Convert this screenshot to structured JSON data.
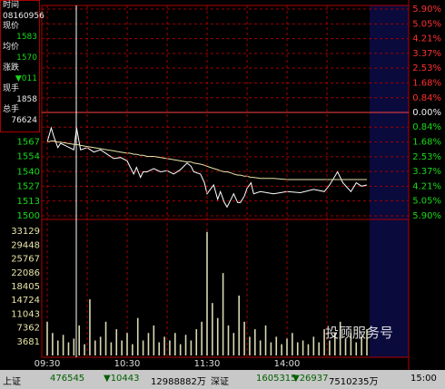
{
  "chart_data": [
    {
      "type": "line",
      "xlim": [
        0,
        240
      ],
      "x": [
        0,
        3,
        5,
        8,
        10,
        15,
        20,
        22,
        25,
        30,
        35,
        40,
        45,
        50,
        55,
        60,
        62,
        65,
        67,
        70,
        72,
        75,
        80,
        85,
        90,
        95,
        100,
        105,
        108,
        110,
        115,
        118,
        120,
        125,
        128,
        130,
        133,
        135,
        138,
        140,
        143,
        145,
        148,
        150,
        153,
        155,
        160,
        170,
        180,
        190,
        200,
        208,
        212,
        218,
        222,
        228,
        232,
        236,
        240
      ],
      "series": [
        {
          "color": "#ffffff",
          "values": [
            1567,
            1580,
            1572,
            1562,
            1566,
            1563,
            1560,
            1580,
            1560,
            1562,
            1558,
            1560,
            1556,
            1552,
            1553,
            1550,
            1545,
            1538,
            1544,
            1535,
            1540,
            1540,
            1543,
            1540,
            1541,
            1538,
            1542,
            1548,
            1545,
            1540,
            1538,
            1530,
            1520,
            1528,
            1515,
            1522,
            1512,
            1508,
            1515,
            1520,
            1512,
            1512,
            1518,
            1525,
            1530,
            1520,
            1522,
            1520,
            1522,
            1521,
            1524,
            1522,
            1528,
            1540,
            1530,
            1522,
            1530,
            1527,
            1528
          ]
        },
        {
          "color": "#e8e4a8",
          "values": [
            1567,
            1568,
            1568,
            1567,
            1567,
            1566,
            1565,
            1565,
            1564,
            1563,
            1562,
            1561,
            1560,
            1559,
            1558,
            1557,
            1557,
            1556,
            1556,
            1555,
            1555,
            1554,
            1554,
            1553,
            1552,
            1551,
            1550,
            1549,
            1549,
            1548,
            1547,
            1546,
            1545,
            1543,
            1542,
            1541,
            1540,
            1540,
            1539,
            1538,
            1537,
            1537,
            1536,
            1536,
            1535,
            1535,
            1534,
            1534,
            1533,
            1533,
            1533,
            1533,
            1533,
            1533,
            1533,
            1533,
            1533,
            1533,
            1533
          ]
        }
      ],
      "ylim": [
        1500,
        1688
      ],
      "yticks": [
        1500,
        1513,
        1527,
        1540,
        1554,
        1567
      ],
      "ytick_color": "#19d919",
      "y2lim": [
        -5.9,
        5.9
      ],
      "y2ticks": [
        {
          "value": 5.9,
          "label": "5.90%"
        },
        {
          "value": 5.05,
          "label": "5.05%"
        },
        {
          "value": 4.21,
          "label": "4.21%"
        },
        {
          "value": 3.37,
          "label": "3.37%"
        },
        {
          "value": 2.53,
          "label": "2.53%"
        },
        {
          "value": 1.68,
          "label": "1.68%"
        },
        {
          "value": 0.84,
          "label": "0.84%"
        },
        {
          "value": 0,
          "label": "0.00%"
        },
        {
          "value": -0.84,
          "label": "0.84%"
        },
        {
          "value": -1.68,
          "label": "1.68%"
        },
        {
          "value": -2.53,
          "label": "2.53%"
        },
        {
          "value": -3.37,
          "label": "3.37%"
        },
        {
          "value": -4.21,
          "label": "4.21%"
        },
        {
          "value": -5.05,
          "label": "5.05%"
        },
        {
          "value": -5.9,
          "label": "5.90%"
        }
      ],
      "grid": true
    },
    {
      "type": "bar",
      "xlim": [
        0,
        240
      ],
      "x": [
        0,
        4,
        8,
        12,
        16,
        20,
        24,
        28,
        32,
        36,
        40,
        44,
        48,
        52,
        56,
        60,
        64,
        68,
        72,
        76,
        80,
        84,
        88,
        92,
        96,
        100,
        104,
        108,
        112,
        116,
        120,
        124,
        128,
        132,
        136,
        140,
        144,
        148,
        152,
        156,
        160,
        164,
        168,
        172,
        176,
        180,
        184,
        188,
        192,
        196,
        200,
        204,
        208,
        212,
        216,
        220,
        224,
        228,
        232,
        236,
        240
      ],
      "values": [
        9000,
        6000,
        4000,
        5500,
        3500,
        4500,
        8000,
        3000,
        15000,
        4000,
        5000,
        9000,
        3500,
        7000,
        4000,
        6000,
        3000,
        10000,
        4000,
        6000,
        8000,
        3500,
        5000,
        4000,
        6000,
        3000,
        5500,
        4000,
        7000,
        9000,
        33000,
        14000,
        10000,
        22000,
        8000,
        6000,
        16000,
        9000,
        5000,
        7000,
        4000,
        8000,
        3500,
        5000,
        3000,
        4500,
        6000,
        3500,
        4000,
        3000,
        5000,
        3500,
        7000,
        4000,
        6000,
        9000,
        4500,
        6000,
        3500,
        5000,
        7000
      ],
      "color": "#d8d8b0",
      "ylim": [
        0,
        36810
      ],
      "yticks": [
        3681,
        7362,
        11043,
        14724,
        18405,
        22086,
        25767,
        29448,
        33129
      ],
      "ytick_color": "#e8e4a8",
      "xticks": [
        {
          "value": 0,
          "label": "09:30"
        },
        {
          "value": 60,
          "label": "10:30"
        },
        {
          "value": 120,
          "label": "11:30"
        },
        {
          "value": 180,
          "label": "14:00"
        }
      ],
      "grid": false
    }
  ],
  "info_panel": {
    "time_label": "时间",
    "time": "08160956",
    "price_label": "现价",
    "price": "1583",
    "avg_label": "均价",
    "avg": "1570",
    "change_label": "涨跌",
    "change": "▼011",
    "hand_label": "现手",
    "hand": "1858",
    "total_label": "总手",
    "total": "76624"
  },
  "status_bar": {
    "sh_label": "上证",
    "sh_index": "476545",
    "sh_change": "▼10443",
    "sh_amount": "12988882万",
    "sz_label": "深证",
    "sz_index": "1605315",
    "sz_change": "▼26937",
    "sz_amount": "7510235万",
    "time": "15:00"
  },
  "watermark": "投顾服务号"
}
